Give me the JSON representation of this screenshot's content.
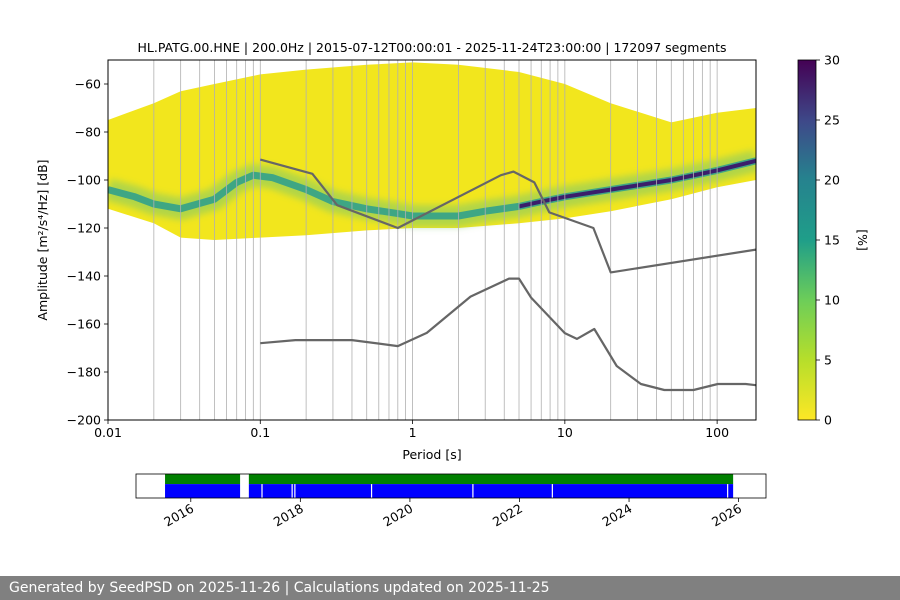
{
  "title": "HL.PATG.00.HNE | 200.0Hz | 2015-07-12T00:00:01 - 2025-11-24T23:00:00 | 172097 segments",
  "footer": "Generated by SeedPSD on 2025-11-26 | Calculations updated on 2025-11-25",
  "colors": {
    "yellow": "#f2e61d",
    "green": "#2a9d8f",
    "purple": "#3b1e6b",
    "nlnm": "#666666",
    "grid": "#b0b0b0",
    "avail_green": "#008000",
    "avail_blue": "#0000ff"
  },
  "chart_data": [
    {
      "type": "heatmap",
      "xlabel": "Period [s]",
      "ylabel": "Amplitude [m²/s⁴/Hz] [dB]",
      "xscale": "log",
      "xlim": [
        0.01,
        180
      ],
      "ylim": [
        -200,
        -50
      ],
      "xticks": [
        0.01,
        0.1,
        1,
        10,
        100
      ],
      "xtick_labels": [
        "0.01",
        "0.1",
        "1",
        "10",
        "100"
      ],
      "yticks": [
        -200,
        -180,
        -160,
        -140,
        -120,
        -100,
        -80,
        -60
      ],
      "ytick_labels": [
        "−200",
        "−180",
        "−160",
        "−140",
        "−120",
        "−100",
        "−80",
        "−60"
      ],
      "colorbar": {
        "label": "[%]",
        "range": [
          0,
          30
        ],
        "ticks": [
          0,
          5,
          10,
          15,
          20,
          25,
          30
        ],
        "tick_labels": [
          "0",
          "5",
          "10",
          "15",
          "20",
          "25",
          "30"
        ]
      },
      "envelope": {
        "period": [
          0.01,
          0.02,
          0.03,
          0.05,
          0.1,
          0.2,
          0.5,
          1,
          2,
          5,
          10,
          20,
          50,
          100,
          180
        ],
        "upper_db": [
          -75,
          -68,
          -63,
          -60,
          -56,
          -54,
          -52,
          -51,
          -52,
          -55,
          -60,
          -68,
          -76,
          -72,
          -70
        ],
        "lower_db": [
          -112,
          -118,
          -124,
          -125,
          -124,
          -123,
          -121,
          -120,
          -120,
          -118,
          -116,
          -113,
          -108,
          -103,
          -100
        ]
      },
      "mode_curve": {
        "period": [
          0.01,
          0.015,
          0.02,
          0.03,
          0.05,
          0.07,
          0.09,
          0.12,
          0.2,
          0.3,
          0.5,
          0.8,
          1,
          2,
          3,
          5,
          7,
          10,
          20,
          50,
          100,
          180
        ],
        "db": [
          -104,
          -107,
          -110,
          -112,
          -108,
          -101,
          -98,
          -99,
          -104,
          -109,
          -112,
          -114,
          -115,
          -115,
          -113,
          -111,
          -109,
          -107,
          -104,
          -100,
          -96,
          -92
        ]
      },
      "nlnm": {
        "period": [
          0.1,
          0.17,
          0.4,
          0.8,
          1.24,
          2.4,
          4.3,
          5,
          6,
          10,
          12,
          15.6,
          21.9,
          31.6,
          45,
          70,
          101,
          154,
          180
        ],
        "db": [
          -168,
          -166.7,
          -166.7,
          -169.2,
          -163.7,
          -148.6,
          -141.1,
          -141.1,
          -149,
          -163.8,
          -166.2,
          -162.1,
          -177.5,
          -185,
          -187.5,
          -187.5,
          -185,
          -185,
          -185.5
        ]
      },
      "nhnm": {
        "period": [
          0.1,
          0.22,
          0.32,
          0.8,
          3.8,
          4.6,
          6.3,
          7.9,
          15.4,
          20,
          180
        ],
        "db": [
          -91.5,
          -97.4,
          -110.5,
          -120,
          -98,
          -96.5,
          -101,
          -113.5,
          -120,
          -138.5,
          -129
        ]
      }
    },
    {
      "type": "availability",
      "xlim": [
        2015.0,
        2026.5
      ],
      "xticks": [
        2016,
        2018,
        2020,
        2022,
        2024,
        2026
      ],
      "xtick_labels": [
        "2016",
        "2018",
        "2020",
        "2022",
        "2024",
        "2026"
      ],
      "segments": [
        [
          2015.53,
          2016.9
        ],
        [
          2017.06,
          2025.9
        ]
      ],
      "gaps": [
        2017.3,
        2017.85,
        2017.9,
        2019.3,
        2021.15,
        2022.6,
        2025.8
      ]
    }
  ]
}
